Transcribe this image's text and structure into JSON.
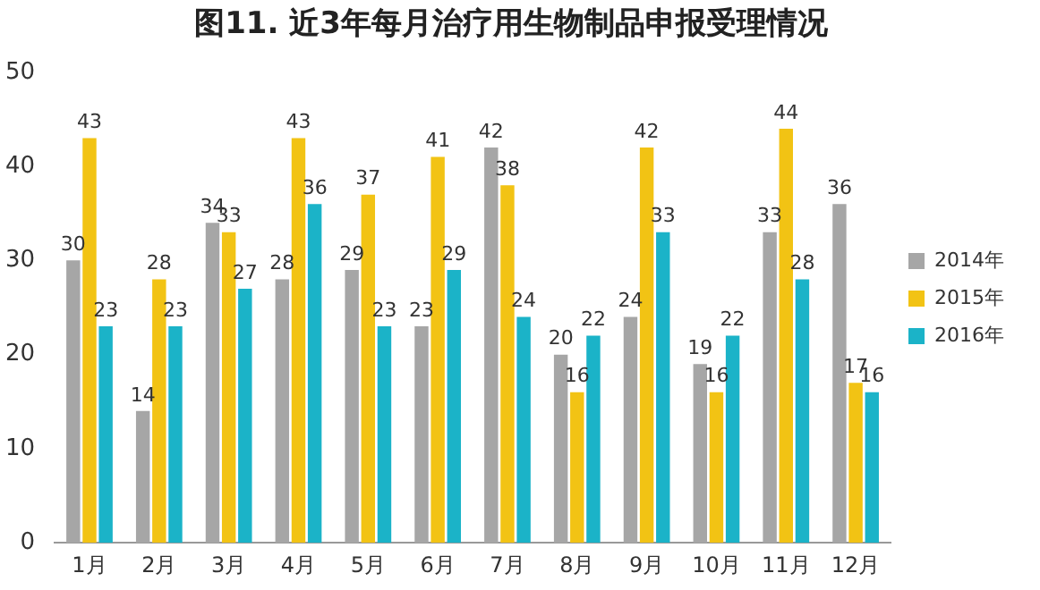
{
  "chart_data": {
    "type": "bar",
    "title": "图11. 近3年每月治疗用生物制品申报受理情况",
    "categories": [
      "1月",
      "2月",
      "3月",
      "4月",
      "5月",
      "6月",
      "7月",
      "8月",
      "9月",
      "10月",
      "11月",
      "12月"
    ],
    "series": [
      {
        "name": "2014年",
        "color": "#a6a6a6",
        "values": [
          30,
          14,
          34,
          28,
          29,
          23,
          42,
          20,
          24,
          19,
          33,
          36
        ]
      },
      {
        "name": "2015年",
        "color": "#f2c314",
        "values": [
          43,
          28,
          33,
          43,
          37,
          41,
          38,
          16,
          42,
          16,
          44,
          17
        ]
      },
      {
        "name": "2016年",
        "color": "#1bb3c8",
        "values": [
          23,
          23,
          27,
          36,
          23,
          29,
          24,
          22,
          33,
          22,
          28,
          16
        ]
      }
    ],
    "ylim": [
      0,
      50
    ],
    "yticks": [
      0,
      10,
      20,
      30,
      40,
      50
    ],
    "grid": false,
    "legend": "right",
    "data_labels": true
  }
}
